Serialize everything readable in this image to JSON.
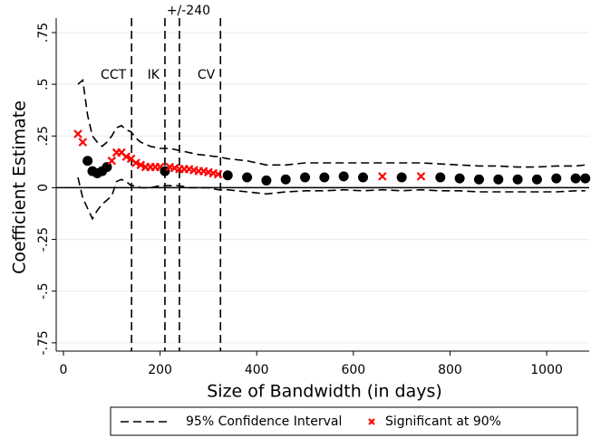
{
  "chart_data": {
    "type": "scatter",
    "x_label": "Size of Bandwidth (in days)",
    "y_label": "Coefficient Estimate",
    "xlim": [
      -15,
      1088
    ],
    "xticks": [
      0,
      200,
      400,
      600,
      800,
      1000
    ],
    "ylim": [
      -0.79,
      0.82
    ],
    "yticks": [
      {
        "value": -0.75,
        "label": "-.75"
      },
      {
        "value": -0.5,
        "label": "-.5"
      },
      {
        "value": -0.25,
        "label": "-.25"
      },
      0,
      {
        "value": 0.25,
        "label": ".25"
      },
      {
        "value": 0.5,
        "label": ".5"
      },
      {
        "value": 0.75,
        "label": ".75"
      }
    ],
    "grid": true,
    "x": [
      30,
      40,
      50,
      60,
      70,
      80,
      90,
      100,
      110,
      120,
      130,
      140,
      150,
      160,
      170,
      180,
      190,
      200,
      210,
      220,
      230,
      240,
      250,
      260,
      270,
      280,
      290,
      300,
      310,
      320,
      340,
      380,
      420,
      460,
      500,
      540,
      580,
      620,
      660,
      700,
      740,
      780,
      820,
      860,
      900,
      940,
      980,
      1020,
      1060,
      1080
    ],
    "estimate": {
      "color": "#000000",
      "values": [
        0.26,
        0.22,
        0.13,
        0.08,
        0.07,
        0.08,
        0.1,
        0.13,
        0.17,
        0.17,
        0.15,
        0.14,
        0.12,
        0.11,
        0.1,
        0.1,
        0.1,
        0.1,
        0.08,
        0.1,
        0.095,
        0.09,
        0.09,
        0.09,
        0.085,
        0.08,
        0.08,
        0.075,
        0.07,
        0.065,
        0.06,
        0.05,
        0.035,
        0.04,
        0.05,
        0.05,
        0.055,
        0.05,
        0.055,
        0.05,
        0.055,
        0.05,
        0.045,
        0.04,
        0.04,
        0.04,
        0.04,
        0.045,
        0.045,
        0.045
      ],
      "significant": [
        true,
        true,
        false,
        false,
        false,
        false,
        false,
        true,
        true,
        true,
        true,
        true,
        true,
        true,
        true,
        true,
        true,
        true,
        false,
        true,
        true,
        true,
        true,
        true,
        true,
        true,
        true,
        true,
        true,
        true,
        false,
        false,
        false,
        false,
        false,
        false,
        false,
        false,
        true,
        false,
        true,
        false,
        false,
        false,
        false,
        false,
        false,
        false,
        false,
        false
      ]
    },
    "ci": {
      "name": "95% Confidence Interval",
      "color": "#000000",
      "upper": [
        0.5,
        0.52,
        0.35,
        0.25,
        0.22,
        0.2,
        0.22,
        0.25,
        0.29,
        0.3,
        0.28,
        0.27,
        0.24,
        0.22,
        0.21,
        0.2,
        0.195,
        0.19,
        0.19,
        0.19,
        0.185,
        0.18,
        0.175,
        0.17,
        0.165,
        0.16,
        0.158,
        0.155,
        0.152,
        0.15,
        0.14,
        0.13,
        0.11,
        0.11,
        0.12,
        0.12,
        0.12,
        0.12,
        0.12,
        0.12,
        0.12,
        0.115,
        0.11,
        0.105,
        0.105,
        0.1,
        0.1,
        0.105,
        0.105,
        0.11
      ],
      "lower": [
        0.05,
        -0.05,
        -0.1,
        -0.15,
        -0.11,
        -0.08,
        -0.06,
        -0.04,
        0.03,
        0.04,
        0.03,
        0.01,
        0.01,
        0,
        0,
        0,
        0.005,
        0.01,
        0.01,
        0.01,
        0.01,
        0.01,
        0.005,
        0,
        0,
        0,
        0,
        0,
        -0.005,
        -0.01,
        -0.01,
        -0.02,
        -0.03,
        -0.02,
        -0.015,
        -0.015,
        -0.01,
        -0.015,
        -0.01,
        -0.015,
        -0.01,
        -0.015,
        -0.015,
        -0.02,
        -0.02,
        -0.02,
        -0.02,
        -0.02,
        -0.015,
        -0.015
      ]
    },
    "significant_marker": {
      "name": "Significant at 90%",
      "color": "#ff0000"
    },
    "vlines": [
      {
        "x": 141,
        "label": "CCT",
        "label_side": "left"
      },
      {
        "x": 210,
        "label": "IK",
        "label_side": "left"
      },
      {
        "x": 240,
        "label": "+/-240",
        "label_side": "top"
      },
      {
        "x": 325,
        "label": "CV",
        "label_side": "left"
      }
    ]
  }
}
